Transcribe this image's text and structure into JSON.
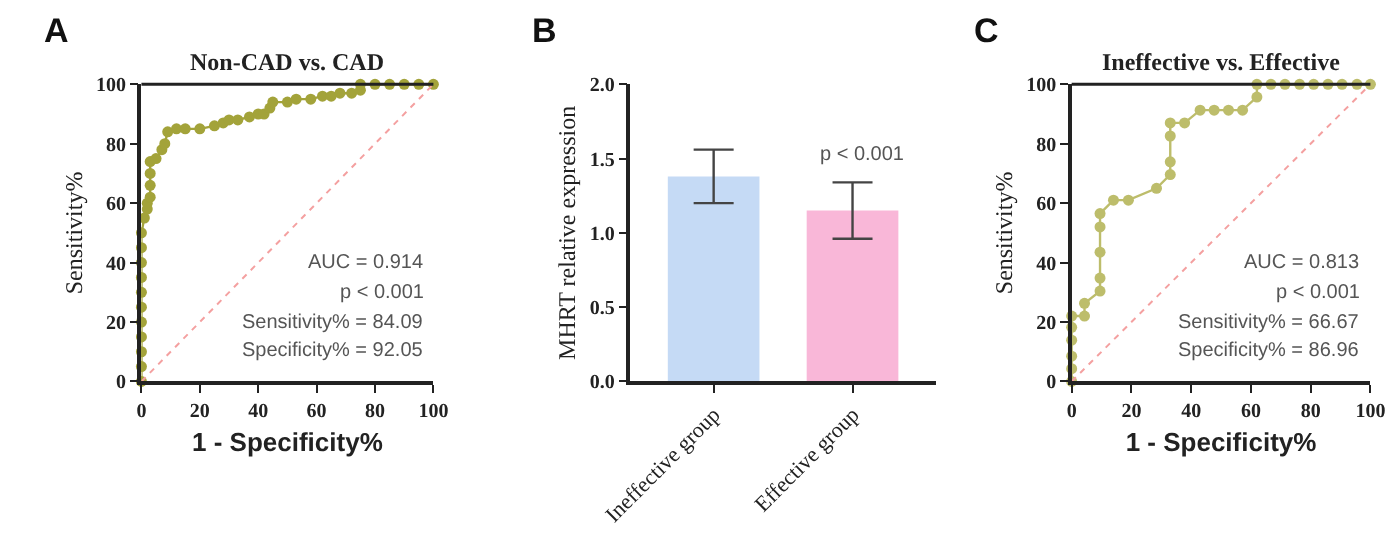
{
  "chart_data": [
    {
      "type": "line",
      "title": "Non-CAD vs. CAD",
      "xlabel": "1 - Specificity%",
      "ylabel": "Sensitivity%",
      "xlim": [
        0,
        100
      ],
      "ylim": [
        0,
        100
      ],
      "xticks": [
        0,
        20,
        40,
        60,
        80,
        100
      ],
      "yticks": [
        0,
        20,
        40,
        60,
        80,
        100
      ],
      "marker": "circle",
      "line_style": "solid",
      "annotations": [
        "A",
        "AUC = 0.914",
        "p < 0.001",
        "Sensitivity% = 84.09",
        "Specificity% = 92.05"
      ],
      "series": [
        {
          "color": "#a3a33a",
          "x": [
            0,
            0,
            0,
            0,
            0,
            0,
            0,
            0,
            0,
            0,
            0,
            1,
            2,
            2,
            3,
            3,
            3,
            3,
            5,
            7,
            8,
            9,
            12,
            15,
            20,
            25,
            28,
            30,
            33,
            37,
            40,
            42,
            44,
            45,
            50,
            53,
            58,
            62,
            65,
            68,
            72,
            75,
            75,
            80,
            85,
            90,
            95,
            100
          ],
          "values": [
            0,
            5,
            10,
            15,
            20,
            25,
            30,
            35,
            40,
            45,
            50,
            55,
            58,
            60,
            62,
            66,
            70,
            74,
            75,
            78,
            80,
            84,
            85,
            85,
            85,
            86,
            87,
            88,
            88,
            89,
            90,
            90,
            92,
            94,
            94,
            95,
            95,
            96,
            96,
            97,
            97,
            98,
            100,
            100,
            100,
            100,
            100,
            100
          ]
        },
        {
          "type": "line",
          "color": "#f4a0a0",
          "marker": "none",
          "line_style": "dotted",
          "x": [
            0,
            100
          ],
          "values": [
            0,
            100
          ]
        }
      ]
    },
    {
      "type": "bar",
      "ylabel": "MHRT relative expression",
      "categories": [
        "Ineffective group",
        "Effective group"
      ],
      "ylim": [
        0,
        2.0
      ],
      "yticks": [
        {
          "value": 0,
          "label": "0.0"
        },
        {
          "value": 0.5,
          "label": "0.5"
        },
        {
          "value": 1,
          "label": "1.0"
        },
        {
          "value": 1.5,
          "label": "1.5"
        },
        {
          "value": 2,
          "label": "2.0"
        }
      ],
      "annotations": [
        "B",
        "p < 0.001"
      ],
      "values": [
        1.38,
        1.15
      ],
      "colors": [
        "#c5daf5",
        "#f9b7d8"
      ],
      "errors": [
        [
          1.2,
          1.56
        ],
        [
          0.96,
          1.34
        ]
      ]
    },
    {
      "type": "line",
      "title": "Ineffective vs. Effective",
      "xlabel": "1 - Specificity%",
      "ylabel": "Sensitivity%",
      "xlim": [
        0,
        100
      ],
      "ylim": [
        0,
        100
      ],
      "xticks": [
        0,
        20,
        40,
        60,
        80,
        100
      ],
      "yticks": [
        0,
        20,
        40,
        60,
        80,
        100
      ],
      "marker": "circle",
      "line_style": "solid",
      "annotations": [
        "C",
        "AUC = 0.813",
        "p < 0.001",
        "Sensitivity% = 66.67",
        "Specificity% = 86.96"
      ],
      "series": [
        {
          "color": "#bdbd6b",
          "x": [
            0,
            0,
            0,
            0,
            0,
            0,
            4.3,
            4.3,
            9.5,
            9.5,
            9.5,
            9.5,
            9.5,
            14,
            19,
            28.4,
            33,
            33,
            33,
            33,
            37.8,
            43,
            47.7,
            52.5,
            57.2,
            62,
            62,
            66.7,
            71.4,
            76.3,
            81,
            85.8,
            90.5,
            95.5,
            100
          ],
          "values": [
            0,
            4.3,
            8.5,
            13.9,
            18.2,
            22,
            22,
            26.3,
            30.4,
            34.8,
            43.5,
            52,
            56.5,
            61,
            61,
            65,
            69.6,
            73.9,
            82.6,
            87,
            87,
            91.3,
            91.3,
            91.3,
            91.3,
            95.7,
            100,
            100,
            100,
            100,
            100,
            100,
            100,
            100,
            100
          ]
        },
        {
          "type": "line",
          "color": "#f4a0a0",
          "marker": "none",
          "line_style": "dotted",
          "x": [
            0,
            100
          ],
          "values": [
            0,
            100
          ]
        }
      ]
    }
  ]
}
